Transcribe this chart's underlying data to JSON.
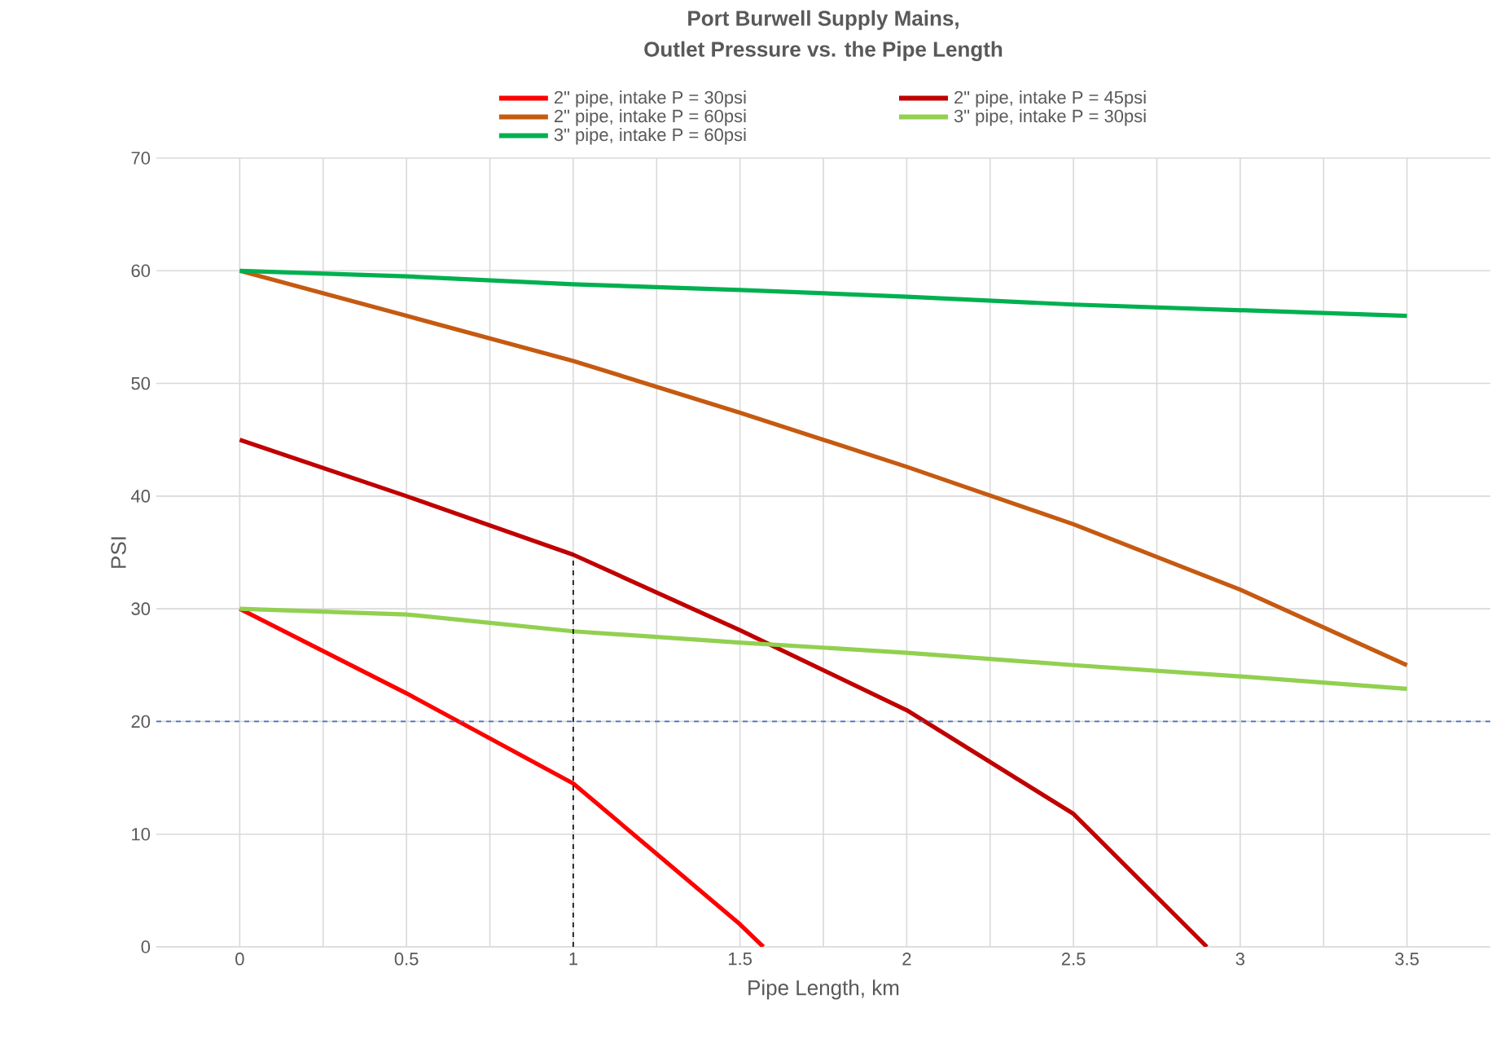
{
  "chart_data": {
    "type": "line",
    "title": "Port Burwell Supply Mains,\nOutlet Pressure vs. the Pipe Length",
    "xlabel": "Pipe Length, km",
    "ylabel": "PSI",
    "xlim": [
      -0.25,
      3.75
    ],
    "ylim": [
      0,
      70
    ],
    "xticks": [
      0,
      0.5,
      1,
      1.5,
      2,
      2.5,
      3,
      3.5
    ],
    "yticks": [
      0,
      10,
      20,
      30,
      40,
      50,
      60,
      70
    ],
    "grid": true,
    "legend": "top",
    "marker": "none",
    "line_style": "solid",
    "series": [
      {
        "name": "2\" pipe,  intake P = 30psi",
        "color": "#ff0000",
        "x": [
          0,
          0.5,
          1,
          1.5,
          1.57
        ],
        "values": [
          30,
          22.5,
          14.5,
          2,
          0
        ]
      },
      {
        "name": "2\" pipe, intake P = 45psi",
        "color": "#c00000",
        "x": [
          0,
          0.5,
          1,
          1.5,
          2,
          2.5,
          2.9
        ],
        "values": [
          45,
          40,
          34.8,
          28.1,
          21,
          11.8,
          0
        ]
      },
      {
        "name": "2\" pipe,  intake P = 60psi",
        "color": "#c55a11",
        "x": [
          0,
          0.5,
          1,
          1.5,
          2,
          2.5,
          3,
          3.5
        ],
        "values": [
          60,
          56,
          52,
          47.4,
          42.6,
          37.5,
          31.7,
          25
        ]
      },
      {
        "name": "3\" pipe, intake P = 30psi",
        "color": "#92d050",
        "x": [
          0,
          0.5,
          1,
          1.5,
          2,
          2.5,
          3,
          3.5
        ],
        "values": [
          30,
          29.5,
          28,
          27,
          26.1,
          25,
          24,
          22.9
        ]
      },
      {
        "name": "3\" pipe, intake P = 60psi",
        "color": "#00b050",
        "x": [
          0,
          0.5,
          1,
          1.5,
          2,
          2.5,
          3,
          3.5
        ],
        "values": [
          60,
          59.5,
          58.8,
          58.3,
          57.7,
          57,
          56.5,
          56
        ]
      },
      {
        "color": "#000000",
        "line_style": "dashed",
        "x": [
          1,
          1
        ],
        "values": [
          0,
          34.8
        ]
      }
    ],
    "ref_lines": [
      {
        "axis": "y",
        "value": 20,
        "color": "#4472c4",
        "line_style": "dashed"
      }
    ]
  }
}
